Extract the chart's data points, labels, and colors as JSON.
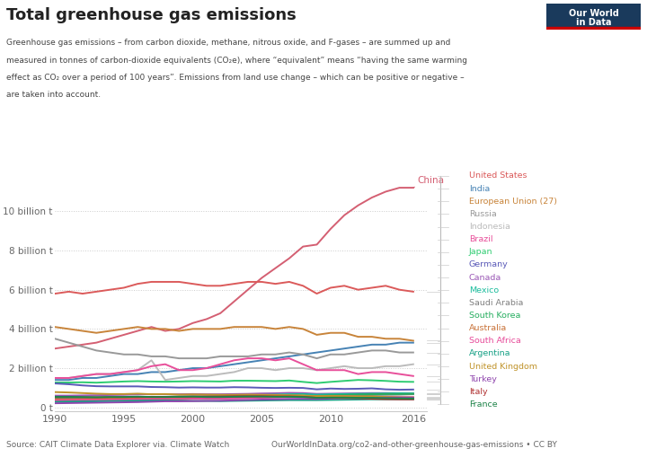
{
  "title": "Total greenhouse gas emissions",
  "subtitle_lines": [
    "Greenhouse gas emissions – from carbon dioxide, methane, nitrous oxide, and F-gases – are summed up and",
    "measured in tonnes of carbon-dioxide equivalents (CO₂e), where “equivalent” means “having the same warming",
    "effect as CO₂ over a period of 100 years”. Emissions from land use change – which can be positive or negative –",
    "are taken into account."
  ],
  "source": "Source: CAIT Climate Data Explorer via. Climate Watch",
  "owid_url": "OurWorldInData.org/co2-and-other-greenhouse-gas-emissions • CC BY",
  "years": [
    1990,
    1991,
    1992,
    1993,
    1994,
    1995,
    1996,
    1997,
    1998,
    1999,
    2000,
    2001,
    2002,
    2003,
    2004,
    2005,
    2006,
    2007,
    2008,
    2009,
    2010,
    2011,
    2012,
    2013,
    2014,
    2015,
    2016
  ],
  "series": {
    "China": {
      "color": "#d45f72",
      "values": [
        3.0,
        3.1,
        3.2,
        3.3,
        3.5,
        3.7,
        3.9,
        4.1,
        3.9,
        4.0,
        4.3,
        4.5,
        4.8,
        5.4,
        6.0,
        6.6,
        7.1,
        7.6,
        8.2,
        8.3,
        9.1,
        9.8,
        10.3,
        10.7,
        11.0,
        11.2,
        11.2
      ]
    },
    "United States": {
      "color": "#db5a5a",
      "values": [
        5.8,
        5.9,
        5.8,
        5.9,
        6.0,
        6.1,
        6.3,
        6.4,
        6.4,
        6.4,
        6.3,
        6.2,
        6.2,
        6.3,
        6.4,
        6.4,
        6.3,
        6.4,
        6.2,
        5.8,
        6.1,
        6.2,
        6.0,
        6.1,
        6.2,
        6.0,
        5.9
      ]
    },
    "India": {
      "color": "#4682b4",
      "values": [
        1.4,
        1.4,
        1.5,
        1.5,
        1.6,
        1.7,
        1.7,
        1.8,
        1.8,
        1.9,
        2.0,
        2.0,
        2.1,
        2.2,
        2.3,
        2.4,
        2.5,
        2.6,
        2.7,
        2.8,
        2.9,
        3.0,
        3.1,
        3.2,
        3.2,
        3.3,
        3.3
      ]
    },
    "European Union (27)": {
      "color": "#c8843a",
      "values": [
        4.1,
        4.0,
        3.9,
        3.8,
        3.9,
        4.0,
        4.1,
        4.0,
        4.0,
        3.9,
        4.0,
        4.0,
        4.0,
        4.1,
        4.1,
        4.1,
        4.0,
        4.1,
        4.0,
        3.7,
        3.8,
        3.8,
        3.6,
        3.6,
        3.5,
        3.5,
        3.4
      ]
    },
    "Russia": {
      "color": "#999999",
      "values": [
        3.5,
        3.3,
        3.1,
        2.9,
        2.8,
        2.7,
        2.7,
        2.6,
        2.6,
        2.5,
        2.5,
        2.5,
        2.6,
        2.6,
        2.6,
        2.7,
        2.7,
        2.8,
        2.7,
        2.5,
        2.7,
        2.7,
        2.8,
        2.9,
        2.9,
        2.8,
        2.8
      ]
    },
    "Indonesia": {
      "color": "#bbbbbb",
      "values": [
        1.5,
        1.5,
        1.6,
        1.7,
        1.7,
        1.8,
        1.9,
        2.4,
        1.4,
        1.5,
        1.6,
        1.6,
        1.7,
        1.8,
        2.0,
        2.0,
        1.9,
        2.0,
        2.0,
        1.9,
        2.0,
        2.1,
        2.0,
        2.0,
        2.1,
        2.1,
        2.2
      ]
    },
    "Brazil": {
      "color": "#e84f9a",
      "values": [
        1.5,
        1.5,
        1.6,
        1.7,
        1.7,
        1.8,
        1.9,
        2.1,
        2.2,
        1.9,
        1.9,
        2.0,
        2.2,
        2.4,
        2.5,
        2.5,
        2.4,
        2.5,
        2.2,
        1.9,
        1.9,
        1.9,
        1.7,
        1.8,
        1.8,
        1.7,
        1.6
      ]
    },
    "Japan": {
      "color": "#2ecc71",
      "values": [
        1.27,
        1.27,
        1.28,
        1.26,
        1.29,
        1.32,
        1.34,
        1.32,
        1.31,
        1.32,
        1.34,
        1.33,
        1.32,
        1.36,
        1.36,
        1.35,
        1.34,
        1.37,
        1.3,
        1.24,
        1.3,
        1.35,
        1.4,
        1.38,
        1.35,
        1.31,
        1.3
      ]
    },
    "Germany": {
      "color": "#5a5ab8",
      "values": [
        1.22,
        1.18,
        1.12,
        1.08,
        1.07,
        1.07,
        1.07,
        1.04,
        1.03,
        1.01,
        1.02,
        1.01,
        1.01,
        1.03,
        1.02,
        1.0,
        0.99,
        1.0,
        0.99,
        0.92,
        0.96,
        0.94,
        0.95,
        0.97,
        0.92,
        0.9,
        0.91
      ]
    },
    "Canada": {
      "color": "#9b59b6",
      "values": [
        0.6,
        0.6,
        0.61,
        0.62,
        0.63,
        0.64,
        0.66,
        0.67,
        0.67,
        0.67,
        0.68,
        0.67,
        0.67,
        0.68,
        0.69,
        0.71,
        0.72,
        0.74,
        0.73,
        0.69,
        0.7,
        0.71,
        0.72,
        0.73,
        0.73,
        0.72,
        0.71
      ]
    },
    "Mexico": {
      "color": "#1abc9c",
      "values": [
        0.45,
        0.46,
        0.47,
        0.48,
        0.49,
        0.51,
        0.52,
        0.53,
        0.54,
        0.55,
        0.55,
        0.56,
        0.57,
        0.58,
        0.61,
        0.63,
        0.65,
        0.67,
        0.68,
        0.65,
        0.67,
        0.68,
        0.69,
        0.7,
        0.71,
        0.72,
        0.71
      ]
    },
    "Saudi Arabia": {
      "color": "#808080",
      "values": [
        0.33,
        0.34,
        0.35,
        0.36,
        0.37,
        0.38,
        0.39,
        0.4,
        0.41,
        0.42,
        0.44,
        0.45,
        0.46,
        0.47,
        0.49,
        0.5,
        0.52,
        0.54,
        0.56,
        0.57,
        0.59,
        0.6,
        0.62,
        0.63,
        0.64,
        0.65,
        0.67
      ]
    },
    "South Korea": {
      "color": "#27ae60",
      "values": [
        0.3,
        0.31,
        0.33,
        0.35,
        0.37,
        0.4,
        0.43,
        0.45,
        0.4,
        0.42,
        0.45,
        0.46,
        0.48,
        0.5,
        0.52,
        0.54,
        0.55,
        0.57,
        0.59,
        0.58,
        0.61,
        0.63,
        0.65,
        0.67,
        0.68,
        0.68,
        0.69
      ]
    },
    "Australia": {
      "color": "#c87137",
      "values": [
        0.42,
        0.42,
        0.43,
        0.44,
        0.45,
        0.46,
        0.47,
        0.48,
        0.49,
        0.5,
        0.5,
        0.51,
        0.52,
        0.53,
        0.54,
        0.55,
        0.56,
        0.58,
        0.58,
        0.57,
        0.57,
        0.56,
        0.55,
        0.54,
        0.53,
        0.52,
        0.52
      ]
    },
    "South Africa": {
      "color": "#e74c9a",
      "values": [
        0.36,
        0.37,
        0.38,
        0.38,
        0.39,
        0.4,
        0.41,
        0.43,
        0.43,
        0.42,
        0.44,
        0.45,
        0.45,
        0.46,
        0.47,
        0.5,
        0.51,
        0.52,
        0.53,
        0.52,
        0.55,
        0.57,
        0.55,
        0.53,
        0.52,
        0.51,
        0.5
      ]
    },
    "Argentina": {
      "color": "#16a085",
      "values": [
        0.28,
        0.29,
        0.3,
        0.31,
        0.32,
        0.33,
        0.34,
        0.35,
        0.35,
        0.34,
        0.33,
        0.33,
        0.32,
        0.33,
        0.34,
        0.35,
        0.36,
        0.37,
        0.37,
        0.37,
        0.38,
        0.39,
        0.4,
        0.41,
        0.41,
        0.41,
        0.41
      ]
    },
    "United Kingdom": {
      "color": "#c0932a",
      "values": [
        0.78,
        0.76,
        0.73,
        0.7,
        0.68,
        0.68,
        0.7,
        0.67,
        0.68,
        0.65,
        0.66,
        0.65,
        0.64,
        0.64,
        0.65,
        0.64,
        0.63,
        0.62,
        0.61,
        0.57,
        0.58,
        0.57,
        0.56,
        0.56,
        0.53,
        0.5,
        0.49
      ]
    },
    "Turkey": {
      "color": "#8e44ad",
      "values": [
        0.21,
        0.22,
        0.23,
        0.24,
        0.25,
        0.26,
        0.27,
        0.29,
        0.31,
        0.31,
        0.32,
        0.33,
        0.34,
        0.36,
        0.38,
        0.4,
        0.41,
        0.43,
        0.44,
        0.43,
        0.45,
        0.47,
        0.48,
        0.48,
        0.49,
        0.5,
        0.5
      ]
    },
    "Italy": {
      "color": "#b03030",
      "values": [
        0.52,
        0.52,
        0.52,
        0.52,
        0.53,
        0.53,
        0.53,
        0.54,
        0.54,
        0.55,
        0.56,
        0.56,
        0.56,
        0.57,
        0.57,
        0.57,
        0.56,
        0.56,
        0.54,
        0.49,
        0.49,
        0.48,
        0.47,
        0.44,
        0.42,
        0.41,
        0.41
      ]
    },
    "France": {
      "color": "#1e8449",
      "values": [
        0.54,
        0.54,
        0.53,
        0.52,
        0.53,
        0.53,
        0.55,
        0.53,
        0.53,
        0.54,
        0.55,
        0.53,
        0.53,
        0.54,
        0.55,
        0.55,
        0.54,
        0.54,
        0.53,
        0.49,
        0.5,
        0.5,
        0.49,
        0.49,
        0.47,
        0.46,
        0.45
      ]
    }
  },
  "series_order": [
    "China",
    "United States",
    "India",
    "European Union (27)",
    "Russia",
    "Indonesia",
    "Brazil",
    "Japan",
    "Germany",
    "Canada",
    "Mexico",
    "Saudi Arabia",
    "South Korea",
    "Australia",
    "South Africa",
    "Argentina",
    "United Kingdom",
    "Turkey",
    "Italy",
    "France"
  ],
  "legend_order": [
    "United States",
    "India",
    "European Union (27)",
    "Russia",
    "Indonesia",
    "Brazil",
    "Japan",
    "Germany",
    "Canada",
    "Mexico",
    "Saudi Arabia",
    "South Korea",
    "Australia",
    "South Africa",
    "Argentina",
    "United Kingdom",
    "Turkey",
    "Italy",
    "France"
  ],
  "yticks": [
    0,
    2,
    4,
    6,
    8,
    10
  ],
  "ytick_labels": [
    "0 t",
    "2 billion t",
    "4 billion t",
    "6 billion t",
    "8 billion t",
    "10 billion t"
  ],
  "xticks": [
    1990,
    1995,
    2000,
    2005,
    2010,
    2016
  ],
  "xmin": 1990,
  "xmax": 2017,
  "ymin": -0.2,
  "ymax": 12.5,
  "bg_color": "#ffffff",
  "grid_color": "#cccccc",
  "logo_bg": "#1a3a5c",
  "logo_red": "#cc0000"
}
